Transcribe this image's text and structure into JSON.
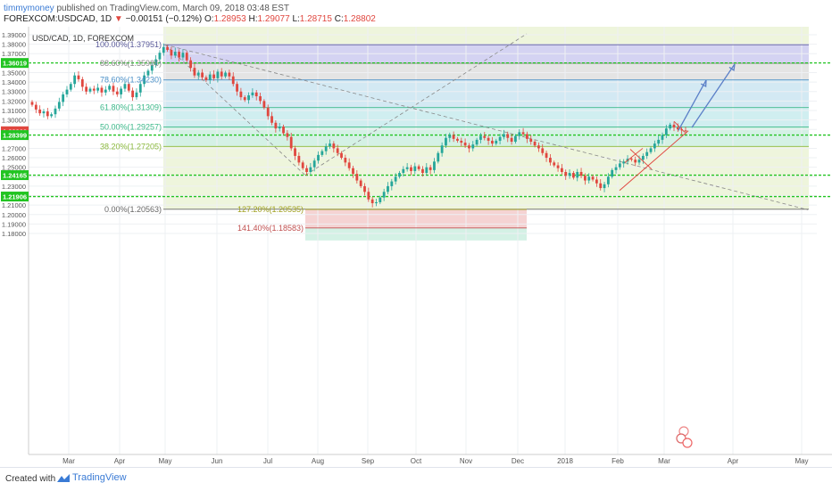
{
  "header": {
    "user": "timmymoney",
    "published": " published on TradingView.com, March 09, 2018 03:48 EST",
    "symbol": "FOREXCOM:USDCAD, 1D",
    "change": "−0.00151 (−0.12%)",
    "o_label": "O:",
    "o_val": "1.28953",
    "h_label": "H:",
    "h_val": "1.29077",
    "l_label": "L:",
    "l_val": "1.28715",
    "c_label": "C:",
    "c_val": "1.28802"
  },
  "footer": {
    "created": "Created with",
    "brand": "TradingView"
  },
  "colors": {
    "up": "#26a69a",
    "down": "#e0473f",
    "green_line": "#21c421",
    "blue_arrow": "#5b7fc7",
    "trend": "#e0473f"
  },
  "chart_data": {
    "type": "candlestick",
    "title": "USD/CAD, 1D, FOREXCOM",
    "ylim": [
      1.178,
      1.393
    ],
    "y_ticks": [
      "1.39000",
      "1.38000",
      "1.37000",
      "1.35000",
      "1.34000",
      "1.33000",
      "1.32000",
      "1.31000",
      "1.30000",
      "1.29000",
      "1.27000",
      "1.26000",
      "1.25000",
      "1.24000",
      "1.23000",
      "1.22000",
      "1.21000",
      "1.20000",
      "1.19000",
      "1.18000"
    ],
    "x_ticks": [
      "Mar",
      "Apr",
      "May",
      "Jun",
      "Jul",
      "Aug",
      "Sep",
      "Oct",
      "Nov",
      "Dec",
      "2018",
      "Feb",
      "Mar",
      "Apr",
      "May"
    ],
    "price_badges": [
      {
        "value": "1.36019",
        "color": "#21c421"
      },
      {
        "value": "1.28802",
        "color": "#e0473f"
      },
      {
        "value": "1.28399",
        "color": "#21c421"
      },
      {
        "value": "1.24165",
        "color": "#21c421"
      },
      {
        "value": "1.21906",
        "color": "#21c421"
      }
    ],
    "fib_levels": [
      {
        "label": "100.00%(1.37951)",
        "price": 1.37951
      },
      {
        "label": "88.60%(1.35986)",
        "price": 1.35986
      },
      {
        "label": "78.60%(1.34230)",
        "price": 1.3423
      },
      {
        "label": "61.80%(1.31309)",
        "price": 1.31309
      },
      {
        "label": "50.00%(1.29257)",
        "price": 1.29257
      },
      {
        "label": "38.20%(1.27205)",
        "price": 1.27205
      },
      {
        "label": "0.00%(1.20563)",
        "price": 1.20563
      }
    ],
    "fib_extensions": [
      {
        "label": "127.20%(1.20535)",
        "price": 1.20535
      },
      {
        "label": "141.40%(1.18583)",
        "price": 1.18583
      }
    ],
    "horizontal_levels": [
      1.36019,
      1.28399,
      1.24165,
      1.21906
    ],
    "candles_close": [
      1.316,
      1.311,
      1.307,
      1.309,
      1.304,
      1.306,
      1.312,
      1.319,
      1.327,
      1.332,
      1.338,
      1.347,
      1.343,
      1.335,
      1.33,
      1.333,
      1.331,
      1.334,
      1.329,
      1.332,
      1.336,
      1.33,
      1.327,
      1.333,
      1.338,
      1.331,
      1.324,
      1.329,
      1.338,
      1.347,
      1.352,
      1.358,
      1.364,
      1.371,
      1.377,
      1.374,
      1.368,
      1.372,
      1.366,
      1.371,
      1.363,
      1.355,
      1.347,
      1.35,
      1.345,
      1.342,
      1.348,
      1.344,
      1.351,
      1.346,
      1.35,
      1.346,
      1.338,
      1.33,
      1.324,
      1.321,
      1.326,
      1.329,
      1.325,
      1.32,
      1.313,
      1.304,
      1.297,
      1.291,
      1.293,
      1.286,
      1.282,
      1.27,
      1.262,
      1.255,
      1.249,
      1.245,
      1.25,
      1.257,
      1.263,
      1.267,
      1.272,
      1.275,
      1.27,
      1.265,
      1.26,
      1.255,
      1.249,
      1.243,
      1.236,
      1.23,
      1.224,
      1.216,
      1.212,
      1.213,
      1.218,
      1.224,
      1.23,
      1.235,
      1.24,
      1.244,
      1.248,
      1.25,
      1.246,
      1.251,
      1.248,
      1.244,
      1.25,
      1.247,
      1.256,
      1.265,
      1.273,
      1.281,
      1.284,
      1.28,
      1.278,
      1.276,
      1.273,
      1.27,
      1.274,
      1.279,
      1.283,
      1.281,
      1.278,
      1.275,
      1.278,
      1.282,
      1.285,
      1.281,
      1.277,
      1.283,
      1.287,
      1.285,
      1.28,
      1.277,
      1.273,
      1.27,
      1.265,
      1.26,
      1.255,
      1.252,
      1.249,
      1.245,
      1.241,
      1.244,
      1.239,
      1.245,
      1.241,
      1.236,
      1.24,
      1.237,
      1.233,
      1.228,
      1.232,
      1.24,
      1.247,
      1.25,
      1.254,
      1.256,
      1.259,
      1.258,
      1.255,
      1.258,
      1.262,
      1.266,
      1.27,
      1.275,
      1.279,
      1.284,
      1.291,
      1.295,
      1.292,
      1.29,
      1.289,
      1.288
    ]
  }
}
